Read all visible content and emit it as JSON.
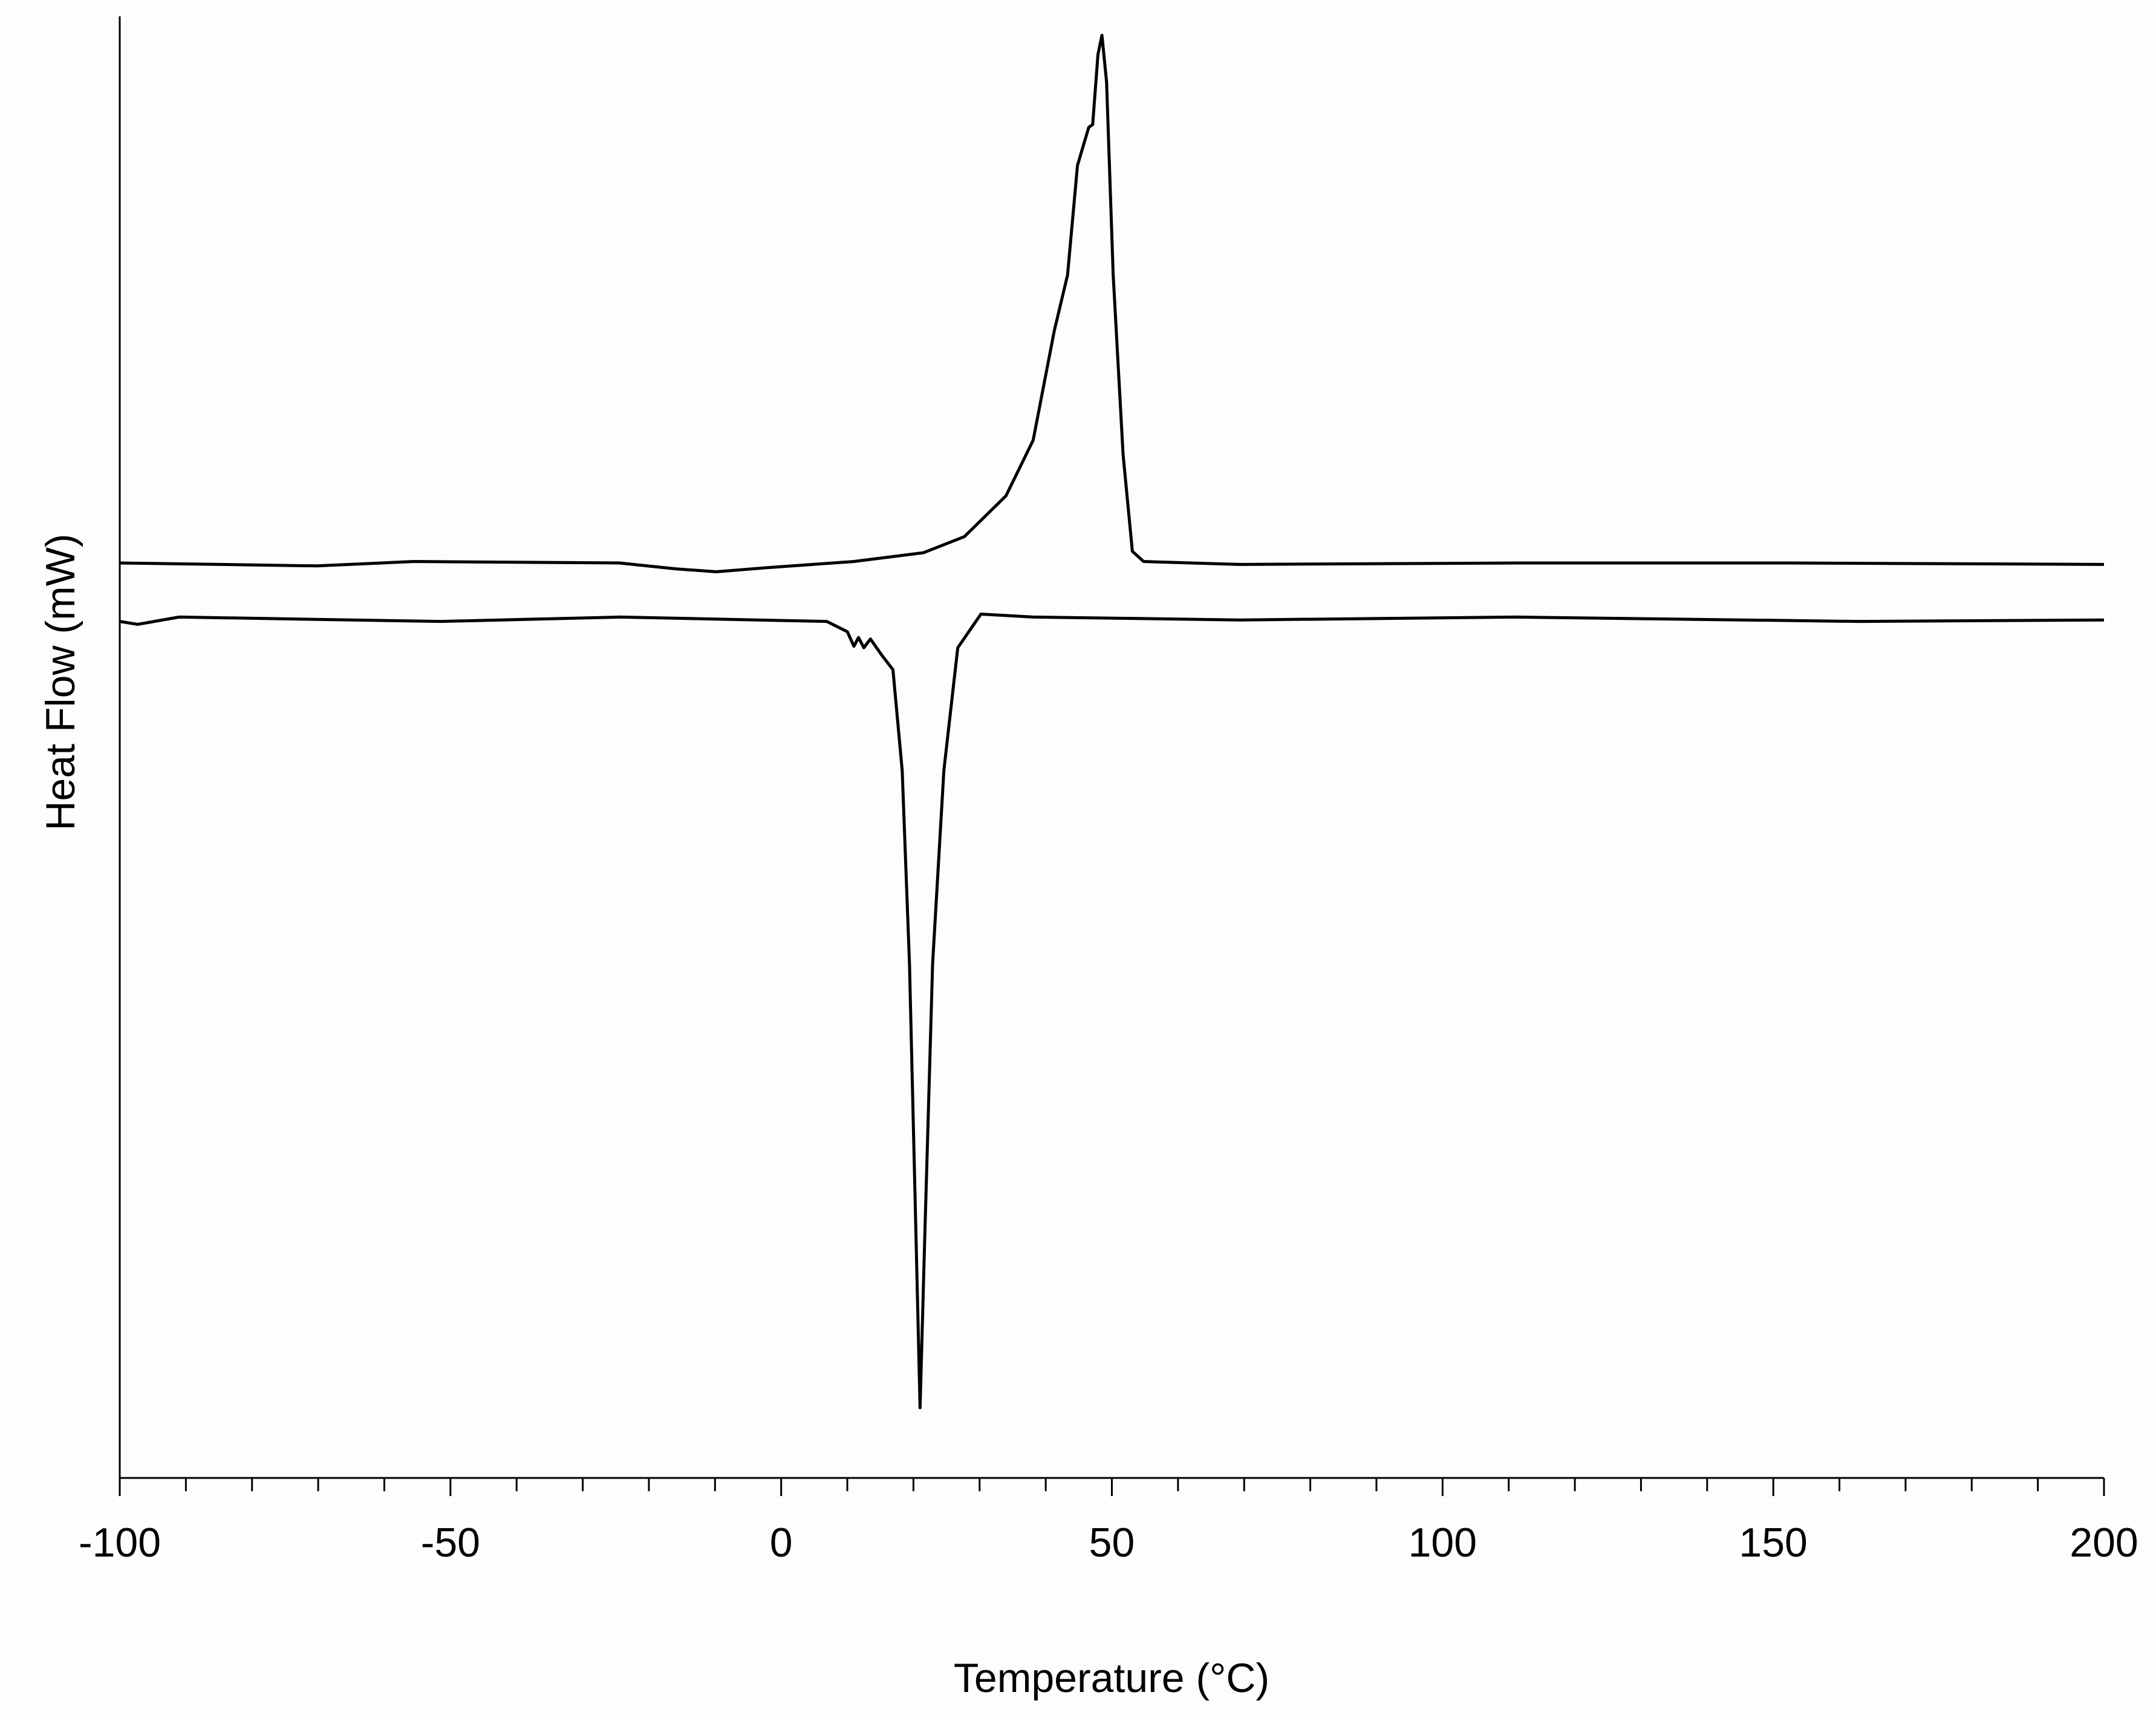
{
  "chart_data": {
    "type": "line",
    "xlabel": "Temperature (°C)",
    "ylabel": "Heat Flow (mW)",
    "xlim": [
      -100,
      200
    ],
    "xticks": [
      -100,
      -50,
      0,
      50,
      100,
      150,
      200
    ],
    "xminor_ticks": [
      -90,
      -80,
      -70,
      -60,
      -40,
      -30,
      -20,
      -10,
      10,
      20,
      30,
      40,
      60,
      70,
      80,
      90,
      110,
      120,
      130,
      140,
      160,
      170,
      180,
      190
    ],
    "ylim": [
      0,
      100
    ],
    "series": [
      {
        "color": "#000000",
        "x": [
          -100,
          -70.2,
          -55.6,
          -24.4,
          -16,
          -9.8,
          -1.5,
          11,
          21.5,
          27.7,
          34,
          38.1,
          41.3,
          43.3,
          44.8,
          46.5,
          47.1,
          47.9,
          48.5,
          49.2,
          50.2,
          51.7,
          53.1,
          54.8,
          69.4,
          111,
          152.7,
          200
        ],
        "values": [
          62.6,
          62.4,
          62.7,
          62.6,
          62.2,
          62.0,
          62.3,
          62.7,
          63.3,
          64.4,
          67.2,
          71.0,
          78.5,
          82.3,
          89.8,
          92.4,
          92.6,
          97.4,
          98.7,
          95.5,
          82.3,
          70.0,
          63.4,
          62.7,
          62.5,
          62.6,
          62.6,
          62.5
        ]
      },
      {
        "color": "#000000",
        "x": [
          -100,
          -97.3,
          -91,
          -51.5,
          -24.4,
          6.9,
          10,
          11,
          11.7,
          12.5,
          13.5,
          15.2,
          16.9,
          18.3,
          19.4,
          20.4,
          21,
          21.7,
          22.9,
          24.6,
          26.7,
          30.2,
          38.1,
          69.4,
          111,
          163,
          200
        ],
        "values": [
          58.6,
          58.4,
          58.9,
          58.6,
          58.9,
          58.6,
          57.9,
          56.9,
          57.5,
          56.8,
          57.4,
          56.3,
          55.3,
          48.4,
          35.2,
          16.3,
          4.8,
          16.3,
          35.2,
          48.4,
          56.8,
          59.1,
          58.9,
          58.7,
          58.9,
          58.6,
          58.7
        ]
      }
    ]
  }
}
